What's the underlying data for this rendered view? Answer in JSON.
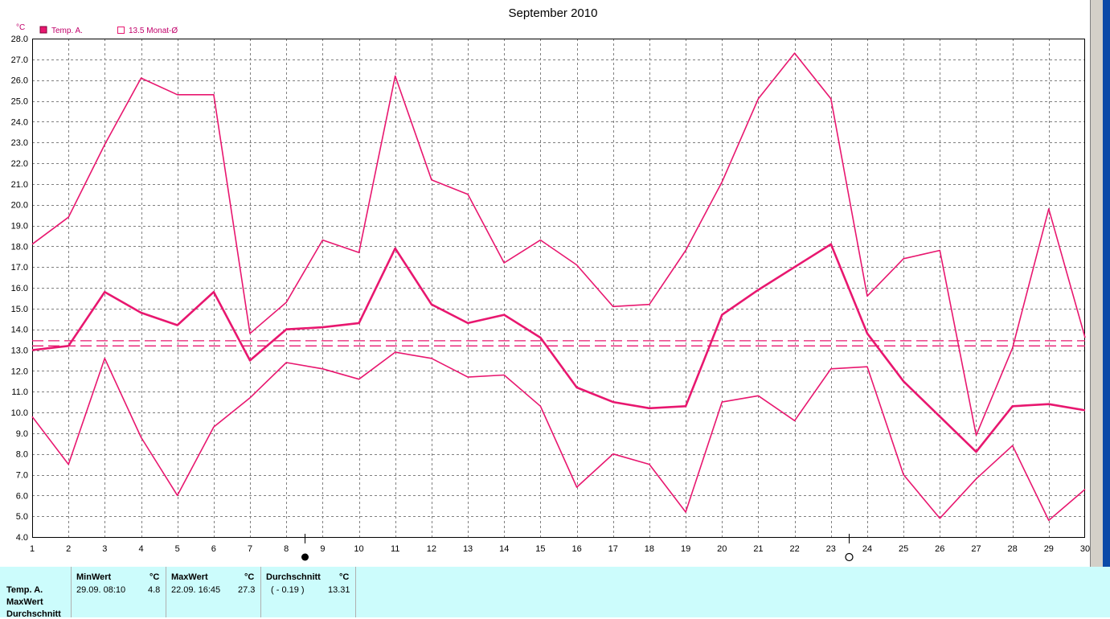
{
  "chart_data": {
    "type": "line",
    "title": "September 2010",
    "ylabel": "°C",
    "xlabel": "",
    "ylim": [
      4.0,
      28.0
    ],
    "ytick_step": 1.0,
    "xlim": [
      1,
      30
    ],
    "grid": true,
    "legend": [
      {
        "label": "Temp. A.",
        "marker": "filled-square"
      },
      {
        "label": "13.5 Monat-Ø",
        "marker": "open-square"
      }
    ],
    "x": [
      1,
      2,
      3,
      4,
      5,
      6,
      7,
      8,
      9,
      10,
      11,
      12,
      13,
      14,
      15,
      16,
      17,
      18,
      19,
      20,
      21,
      22,
      23,
      24,
      25,
      26,
      27,
      28,
      29,
      30
    ],
    "series": [
      {
        "name": "",
        "role": "max",
        "values": [
          18.1,
          19.4,
          22.9,
          26.1,
          25.3,
          25.3,
          13.8,
          15.3,
          18.3,
          17.7,
          26.2,
          21.2,
          20.5,
          17.2,
          18.3,
          17.1,
          15.1,
          15.2,
          17.8,
          21.1,
          25.1,
          27.3,
          25.1,
          15.6,
          17.4,
          17.8,
          8.9,
          13.1,
          19.8,
          13.6
        ]
      },
      {
        "name": "",
        "role": "mean",
        "values": [
          13.0,
          13.2,
          15.8,
          14.8,
          14.2,
          15.8,
          12.5,
          14.0,
          14.1,
          14.3,
          17.9,
          15.2,
          14.3,
          14.7,
          13.6,
          11.2,
          10.5,
          10.2,
          10.3,
          14.7,
          15.9,
          17.0,
          18.1,
          13.8,
          11.5,
          9.8,
          8.1,
          10.3,
          10.4,
          10.1
        ]
      },
      {
        "name": "",
        "role": "min",
        "values": [
          9.8,
          7.5,
          12.6,
          8.8,
          6.0,
          9.3,
          10.7,
          12.4,
          12.1,
          11.6,
          12.9,
          12.6,
          11.7,
          11.8,
          10.3,
          6.4,
          8.0,
          7.5,
          5.2,
          10.5,
          10.8,
          9.6,
          12.1,
          12.2,
          7.0,
          4.9,
          6.8,
          8.4,
          4.8,
          6.3
        ]
      }
    ],
    "reference_lines": [
      13.2,
      13.45
    ],
    "moon_phases": [
      {
        "x": 8.5,
        "phase": "new"
      },
      {
        "x": 23.5,
        "phase": "full"
      }
    ],
    "colors": {
      "line": "#e8176f",
      "grid": "#808080",
      "title": "#000000",
      "tick": "#000000",
      "legend": "#c0006a"
    }
  },
  "stats": {
    "row_labels": [
      "Temp. A.",
      "MaxWert",
      "Durchschnitt"
    ],
    "min": {
      "header": "MinWert",
      "unit": "°C",
      "datetime": "29.09.  08:10",
      "value": "4.8"
    },
    "max": {
      "header": "MaxWert",
      "unit": "°C",
      "datetime": "22.09.  16:45",
      "value": "27.3"
    },
    "avg": {
      "header": "Durchschnitt",
      "unit": "°C",
      "delta": "( - 0.19 )",
      "value": "13.31"
    }
  }
}
